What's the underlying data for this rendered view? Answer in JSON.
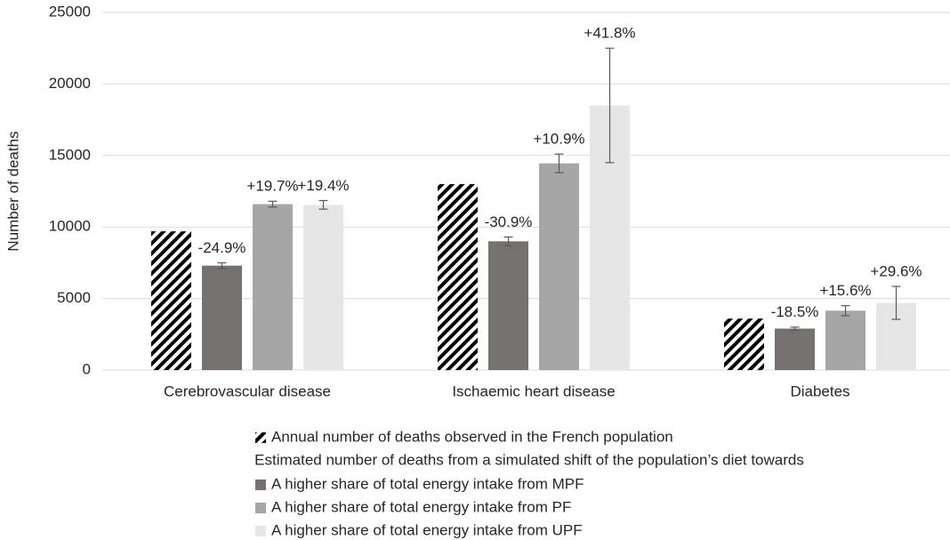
{
  "chart_data": {
    "type": "bar",
    "y_label": "Number of deaths",
    "categories": [
      "Cerebrovascular disease",
      "Ischaemic heart disease",
      "Diabetes"
    ],
    "series": [
      {
        "name": "Annual number of deaths observed in the French population",
        "color": "#000000",
        "hatch": true,
        "values": [
          9700,
          13000,
          3600
        ]
      },
      {
        "name": "A higher share of total energy intake from MPF",
        "color": "#767171",
        "values": [
          7300,
          9000,
          2900
        ],
        "errors": [
          200,
          300,
          100
        ],
        "annotations": [
          "-24.9%",
          "-30.9%",
          "-18.5%"
        ]
      },
      {
        "name": "A higher share of total energy intake from PF",
        "color": "#a6a6a6",
        "values": [
          11600,
          14450,
          4150
        ],
        "errors": [
          200,
          650,
          350
        ],
        "annotations": [
          "+19.7%",
          "+10.9%",
          "+15.6%"
        ]
      },
      {
        "name": "A higher share of total energy intake from UPF",
        "color": "#e7e6e6",
        "values": [
          11550,
          18500,
          4700
        ],
        "errors": [
          300,
          4000,
          1150
        ],
        "annotations": [
          "+19.4%",
          "+41.8%",
          "+29.6%"
        ]
      }
    ],
    "legend_subtitle": "Estimated number of deaths from a simulated shift of the population’s diet towards",
    "ylim": [
      0,
      25000
    ],
    "yticks": [
      0,
      5000,
      10000,
      15000,
      20000,
      25000
    ],
    "grid": true
  }
}
